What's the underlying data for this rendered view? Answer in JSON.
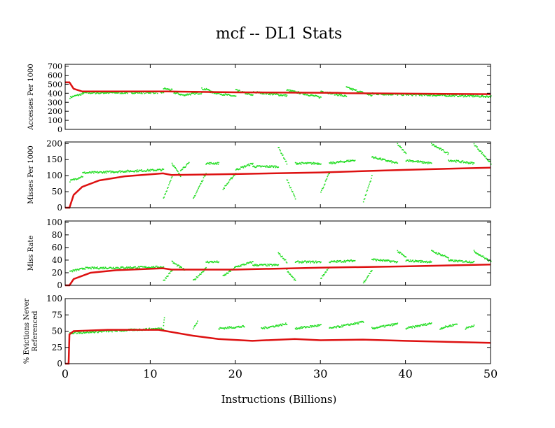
{
  "chart_data": {
    "type": "scatter",
    "title": "mcf -- DL1  Stats",
    "xlabel": "Instructions (Billions)",
    "xlim": [
      0,
      50
    ],
    "xticks": [
      "0",
      "10",
      "20",
      "30",
      "40",
      "50"
    ],
    "colors": {
      "line": "#dd1111",
      "points": "#22dd22"
    },
    "panels": [
      {
        "ylabel": [
          "Accesses Per 1000"
        ],
        "ylim": [
          0,
          720
        ],
        "yticks": [
          0,
          100,
          200,
          300,
          400,
          500,
          600,
          700
        ],
        "line": [
          [
            0,
            520
          ],
          [
            0.5,
            520
          ],
          [
            1,
            450
          ],
          [
            2,
            420
          ],
          [
            12,
            420
          ],
          [
            20,
            410
          ],
          [
            32,
            405
          ],
          [
            33,
            400
          ],
          [
            50,
            390
          ]
        ],
        "point_segments": [
          [
            0.5,
            2,
            360,
            400
          ],
          [
            2,
            11.5,
            410,
            415
          ],
          [
            11.5,
            12.5,
            460,
            440
          ],
          [
            12.5,
            14,
            420,
            380
          ],
          [
            14,
            16,
            390,
            410
          ],
          [
            16,
            17,
            455,
            440
          ],
          [
            17,
            20,
            420,
            370
          ],
          [
            20,
            22,
            440,
            380
          ],
          [
            22,
            26,
            420,
            380
          ],
          [
            26,
            30,
            440,
            360
          ],
          [
            30,
            33,
            430,
            370
          ],
          [
            33,
            36,
            470,
            380
          ],
          [
            36,
            50,
            400,
            370
          ]
        ]
      },
      {
        "ylabel": [
          "Misses Per 1000"
        ],
        "ylim": [
          0,
          205
        ],
        "yticks": [
          0,
          50,
          100,
          150,
          200
        ],
        "line": [
          [
            0,
            0
          ],
          [
            0.5,
            0
          ],
          [
            1,
            40
          ],
          [
            2,
            65
          ],
          [
            4,
            85
          ],
          [
            7,
            98
          ],
          [
            11.5,
            107
          ],
          [
            12.5,
            102
          ],
          [
            20,
            105
          ],
          [
            30,
            110
          ],
          [
            40,
            118
          ],
          [
            50,
            125
          ]
        ],
        "point_segments": [
          [
            0.5,
            2,
            85,
            100
          ],
          [
            2,
            11.5,
            110,
            120
          ],
          [
            11.5,
            12.5,
            30,
            100
          ],
          [
            12.5,
            13.5,
            140,
            100
          ],
          [
            13.5,
            14.5,
            120,
            140
          ],
          [
            15,
            16.5,
            30,
            110
          ],
          [
            16.5,
            18,
            140,
            140
          ],
          [
            18.5,
            20,
            60,
            110
          ],
          [
            20,
            22,
            120,
            140
          ],
          [
            22,
            25,
            130,
            130
          ],
          [
            25,
            26,
            190,
            140
          ],
          [
            26,
            27,
            90,
            30
          ],
          [
            27,
            30,
            140,
            140
          ],
          [
            30,
            31,
            50,
            110
          ],
          [
            31,
            34,
            140,
            150
          ],
          [
            35,
            36,
            20,
            100
          ],
          [
            36,
            39,
            160,
            140
          ],
          [
            39,
            40,
            200,
            170
          ],
          [
            40,
            43,
            150,
            140
          ],
          [
            43,
            45,
            200,
            170
          ],
          [
            45,
            48,
            150,
            140
          ],
          [
            48,
            50,
            200,
            140
          ]
        ]
      },
      {
        "ylabel": [
          "Miss Rate"
        ],
        "ylim": [
          0,
          102
        ],
        "yticks": [
          0,
          20,
          40,
          60,
          80,
          100
        ],
        "line": [
          [
            0,
            0
          ],
          [
            0.5,
            0
          ],
          [
            1,
            10
          ],
          [
            3,
            20
          ],
          [
            6,
            24
          ],
          [
            11.5,
            27
          ],
          [
            12.5,
            25
          ],
          [
            20,
            25
          ],
          [
            30,
            28
          ],
          [
            40,
            30
          ],
          [
            50,
            33
          ]
        ],
        "point_segments": [
          [
            0.5,
            2,
            23,
            27
          ],
          [
            2,
            11.5,
            28,
            30
          ],
          [
            11.5,
            12.5,
            8,
            25
          ],
          [
            12.5,
            14,
            38,
            25
          ],
          [
            15,
            16.5,
            8,
            28
          ],
          [
            16.5,
            18,
            38,
            38
          ],
          [
            18.5,
            20,
            15,
            30
          ],
          [
            20,
            22,
            30,
            38
          ],
          [
            22,
            25,
            33,
            33
          ],
          [
            25,
            26,
            52,
            38
          ],
          [
            26,
            27,
            25,
            8
          ],
          [
            27,
            30,
            38,
            38
          ],
          [
            30,
            31,
            12,
            30
          ],
          [
            31,
            34,
            38,
            40
          ],
          [
            35,
            36,
            5,
            25
          ],
          [
            36,
            39,
            42,
            38
          ],
          [
            39,
            40,
            55,
            45
          ],
          [
            40,
            43,
            40,
            38
          ],
          [
            43,
            45,
            55,
            45
          ],
          [
            45,
            48,
            40,
            38
          ],
          [
            48,
            50,
            55,
            38
          ]
        ]
      },
      {
        "ylabel": [
          "% Evictions Never",
          "Referenced"
        ],
        "ylim": [
          0,
          100
        ],
        "yticks": [
          0,
          25,
          50,
          75,
          100
        ],
        "line": [
          [
            0,
            0
          ],
          [
            0.4,
            0
          ],
          [
            0.5,
            45
          ],
          [
            1,
            50
          ],
          [
            5,
            52
          ],
          [
            11,
            52
          ],
          [
            15,
            43
          ],
          [
            18,
            38
          ],
          [
            22,
            35
          ],
          [
            27,
            38
          ],
          [
            30,
            36
          ],
          [
            35,
            37
          ],
          [
            40,
            35
          ],
          [
            50,
            32
          ]
        ],
        "point_segments": [
          [
            0.5,
            11.5,
            48,
            55
          ],
          [
            11.5,
            11.6,
            60,
            72
          ],
          [
            15,
            15.5,
            55,
            65
          ],
          [
            18,
            21,
            55,
            58
          ],
          [
            23,
            26,
            55,
            62
          ],
          [
            27,
            30,
            55,
            60
          ],
          [
            31,
            35,
            55,
            65
          ],
          [
            36,
            39,
            55,
            62
          ],
          [
            40,
            43,
            55,
            63
          ],
          [
            44,
            46,
            55,
            62
          ],
          [
            47,
            48,
            55,
            60
          ]
        ]
      }
    ]
  }
}
